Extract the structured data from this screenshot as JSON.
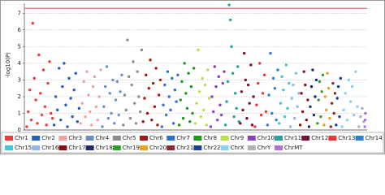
{
  "chart_data": {
    "type": "manhattan",
    "ylabel": "-log10(P)",
    "ylim": [
      0,
      7.6
    ],
    "yticks": [
      0,
      1,
      2,
      3,
      4,
      5,
      6,
      7
    ],
    "grid": true,
    "threshold": 7.3,
    "threshold_color": "#e03030",
    "legend": "bottom",
    "series": [
      {
        "name": "Chr1",
        "color": "#ee3b3b",
        "values": [
          0.2,
          1.1,
          2.4,
          0.6,
          6.4,
          3.1,
          1.8,
          0.4,
          4.5,
          2.2,
          0.9,
          3.6,
          1.4,
          0.3,
          2.8,
          4.1,
          1.0,
          0.7
        ]
      },
      {
        "name": "Chr2",
        "color": "#1f5fbf",
        "values": [
          0.3,
          2.0,
          1.2,
          3.7,
          0.6,
          2.6,
          4.0,
          1.5,
          0.2,
          3.1,
          1.9,
          0.8,
          2.4,
          3.4,
          0.5,
          1.3
        ]
      },
      {
        "name": "Chr3",
        "color": "#f2a0a0",
        "values": [
          0.4,
          1.6,
          2.9,
          0.8,
          3.5,
          2.1,
          1.1,
          0.3,
          2.6,
          3.2,
          1.4,
          0.6,
          2.0,
          3.6
        ]
      },
      {
        "name": "Chr4",
        "color": "#6a8fc8",
        "values": [
          0.2,
          1.4,
          2.6,
          3.8,
          0.7,
          2.2,
          1.0,
          3.0,
          0.4,
          1.8,
          2.9,
          0.9,
          2.3,
          3.3
        ]
      },
      {
        "name": "Chr5",
        "color": "#8c8c8c",
        "values": [
          0.3,
          2.1,
          1.2,
          5.4,
          3.2,
          0.7,
          2.7,
          4.1,
          1.6,
          0.4,
          3.5,
          2.0,
          1.1,
          4.8
        ]
      },
      {
        "name": "Chr6",
        "color": "#a01818",
        "values": [
          0.5,
          1.9,
          3.3,
          1.0,
          2.5,
          4.2,
          0.6,
          2.8,
          1.4,
          3.7,
          0.3,
          2.1,
          3.0
        ]
      },
      {
        "name": "Chr7",
        "color": "#2d6fd6",
        "values": [
          0.2,
          1.5,
          2.7,
          0.9,
          3.5,
          2.0,
          1.2,
          3.1,
          0.4,
          2.4,
          1.7,
          3.3
        ]
      },
      {
        "name": "Chr8",
        "color": "#1a9c1a",
        "values": [
          0.3,
          1.8,
          2.9,
          0.7,
          4.0,
          2.2,
          1.3,
          3.4,
          0.5,
          2.6,
          1.0,
          3.7
        ]
      },
      {
        "name": "Chr9",
        "color": "#b8e04a",
        "values": [
          0.4,
          1.6,
          4.8,
          2.3,
          0.8,
          3.1,
          1.2,
          2.7,
          0.3,
          3.6,
          1.9
        ]
      },
      {
        "name": "Chr10",
        "color": "#8a3fbf",
        "values": [
          0.2,
          2.0,
          1.1,
          3.8,
          2.6,
          0.6,
          3.2,
          1.5,
          0.9,
          2.8,
          3.5
        ]
      },
      {
        "name": "Chr11",
        "color": "#2aa0a0",
        "values": [
          0.3,
          1.7,
          2.9,
          7.5,
          6.6,
          5.0,
          3.4,
          0.8,
          2.2,
          1.3,
          3.8,
          0.5
        ]
      },
      {
        "name": "Chr12",
        "color": "#7a1030",
        "values": [
          0.4,
          2.3,
          1.2,
          4.6,
          3.0,
          0.7,
          2.7,
          1.6,
          3.9,
          0.3,
          2.0
        ]
      },
      {
        "name": "Chr13",
        "color": "#e83838",
        "values": [
          0.2,
          1.5,
          2.8,
          4.0,
          0.9,
          2.2,
          3.3,
          1.1
        ]
      },
      {
        "name": "Chr14",
        "color": "#2f7fd0",
        "values": [
          0.3,
          2.1,
          4.6,
          1.0,
          3.1,
          2.5,
          0.6,
          3.6
        ]
      },
      {
        "name": "Chr15",
        "color": "#3fc8d8",
        "values": [
          0.4,
          1.6,
          3.2,
          2.4,
          0.8,
          3.9,
          1.3,
          2.8
        ]
      },
      {
        "name": "Chr16",
        "color": "#8fb8e8",
        "values": [
          0.2,
          1.9,
          2.7,
          0.7,
          3.4,
          1.4,
          2.2
        ]
      },
      {
        "name": "Chr17",
        "color": "#8a1010",
        "values": [
          0.3,
          2.2,
          1.1,
          3.5,
          2.7,
          0.6,
          1.8
        ]
      },
      {
        "name": "Chr18",
        "color": "#1a2a6a",
        "values": [
          0.2,
          1.4,
          2.6,
          3.6,
          0.9,
          2.0,
          3.0
        ]
      },
      {
        "name": "Chr19",
        "color": "#2ca02c",
        "values": [
          0.4,
          1.8,
          2.9,
          0.8,
          2.3,
          3.3
        ]
      },
      {
        "name": "Chr20",
        "color": "#f0a020",
        "values": [
          0.3,
          2.0,
          1.2,
          3.4,
          2.5,
          0.7
        ]
      },
      {
        "name": "Chr21",
        "color": "#8a2a2a",
        "values": [
          0.2,
          1.6,
          2.8,
          1.0,
          2.2
        ]
      },
      {
        "name": "Chr22",
        "color": "#1a3f9a",
        "values": [
          0.3,
          1.9,
          2.6,
          0.8,
          3.1
        ]
      },
      {
        "name": "ChrX",
        "color": "#8ad0f0",
        "values": [
          0.2,
          1.2,
          2.2,
          0.6,
          3.0,
          1.7,
          2.6,
          0.9,
          3.5,
          1.4
        ]
      },
      {
        "name": "ChrY",
        "color": "#b0b0b0",
        "values": [
          0.2,
          0.8,
          1.3,
          0.5
        ]
      },
      {
        "name": "ChrMT",
        "color": "#b070e0",
        "values": [
          0.2,
          0.6,
          1.0
        ]
      }
    ]
  }
}
